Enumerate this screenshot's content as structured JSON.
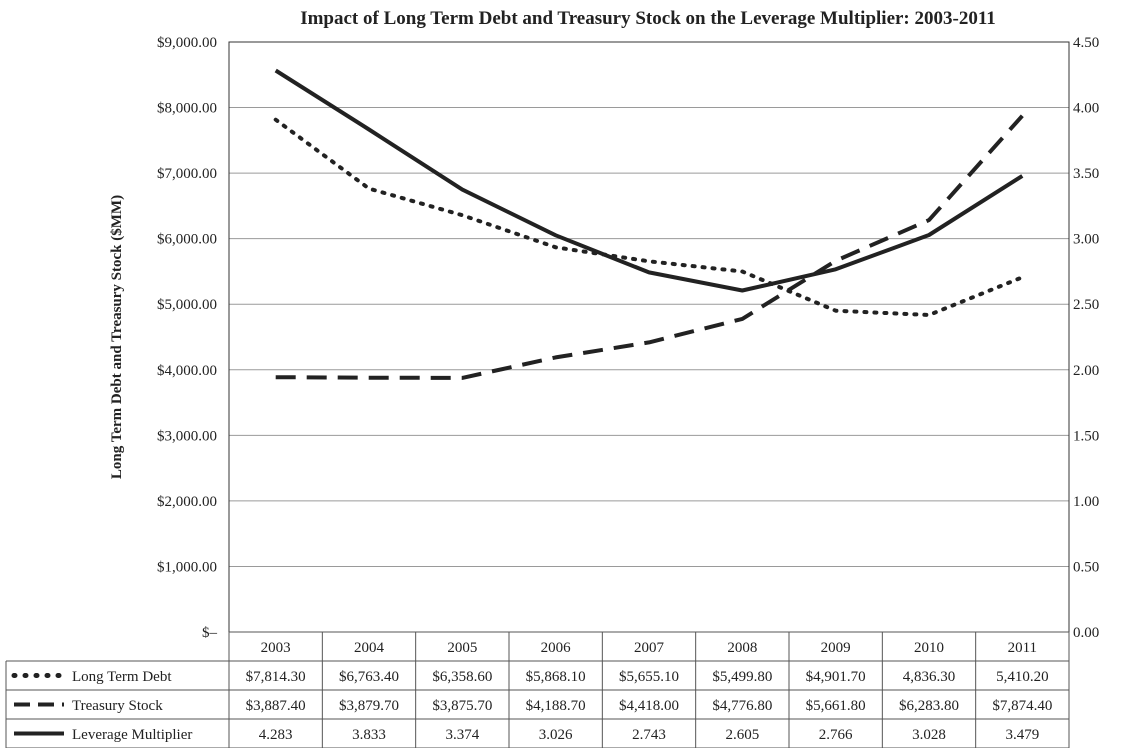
{
  "chart_data": {
    "type": "line",
    "title": "Impact of Long Term Debt and Treasury Stock on the Leverage Multiplier: 2003-2011",
    "ylabel": "Long Term Debt and Treasury Stock ($MM)",
    "ylim": [
      0,
      9000
    ],
    "y2lim": [
      0,
      4.5
    ],
    "y_tick_labels": [
      "$–",
      "$1,000.00",
      "$2,000.00",
      "$3,000.00",
      "$4,000.00",
      "$5,000.00",
      "$6,000.00",
      "$7,000.00",
      "$8,000.00",
      "$9,000.00"
    ],
    "y2_tick_labels": [
      "0.00",
      "0.50",
      "1.00",
      "1.50",
      "2.00",
      "2.50",
      "3.00",
      "3.50",
      "4.00",
      "4.50"
    ],
    "categories": [
      "2003",
      "2004",
      "2005",
      "2006",
      "2007",
      "2008",
      "2009",
      "2010",
      "2011"
    ],
    "grid": true,
    "legend": "data-table-left",
    "series": [
      {
        "name": "Long Term Debt",
        "axis": "left",
        "style": "dotted",
        "color": "#222222",
        "values": [
          7814.3,
          6763.4,
          6358.6,
          5868.1,
          5655.1,
          5499.8,
          4901.7,
          4836.3,
          5410.2
        ],
        "labels": [
          "$7,814.30",
          "$6,763.40",
          "$6,358.60",
          "$5,868.10",
          "$5,655.10",
          "$5,499.80",
          "$4,901.70",
          "4,836.30",
          "5,410.20"
        ]
      },
      {
        "name": "Treasury Stock",
        "axis": "left",
        "style": "dashed",
        "color": "#222222",
        "values": [
          3887.4,
          3879.7,
          3875.7,
          4188.7,
          4418.0,
          4776.8,
          5661.8,
          6283.8,
          7874.4
        ],
        "labels": [
          "$3,887.40",
          "$3,879.70",
          "$3,875.70",
          "$4,188.70",
          "$4,418.00",
          "$4,776.80",
          "$5,661.80",
          "$6,283.80",
          "$7,874.40"
        ]
      },
      {
        "name": "Leverage Multiplier",
        "axis": "right",
        "style": "solid",
        "color": "#222222",
        "values": [
          4.283,
          3.833,
          3.374,
          3.026,
          2.743,
          2.605,
          2.766,
          3.028,
          3.479
        ],
        "labels": [
          "4.283",
          "3.833",
          "3.374",
          "3.026",
          "2.743",
          "2.605",
          "2.766",
          "3.028",
          "3.479"
        ]
      }
    ]
  }
}
